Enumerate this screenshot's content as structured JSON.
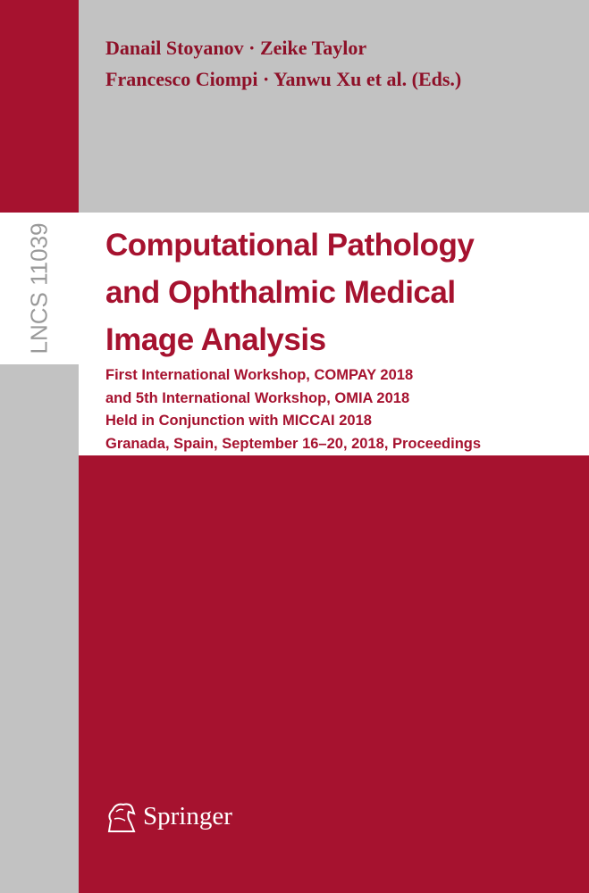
{
  "cover": {
    "authors": [
      "Danail Stoyanov · Zeike Taylor",
      "Francesco Ciompi · Yanwu Xu et al. (Eds.)"
    ],
    "series": "LNCS 11039",
    "title": [
      "Computational Pathology",
      "and Ophthalmic Medical",
      "Image Analysis"
    ],
    "subtitle": [
      "First International Workshop, COMPAY 2018",
      "and 5th International Workshop, OMIA 2018",
      "Held in Conjunction with MICCAI 2018",
      "Granada, Spain, September 16–20, 2018, Proceedings"
    ],
    "publisher": "Springer"
  }
}
